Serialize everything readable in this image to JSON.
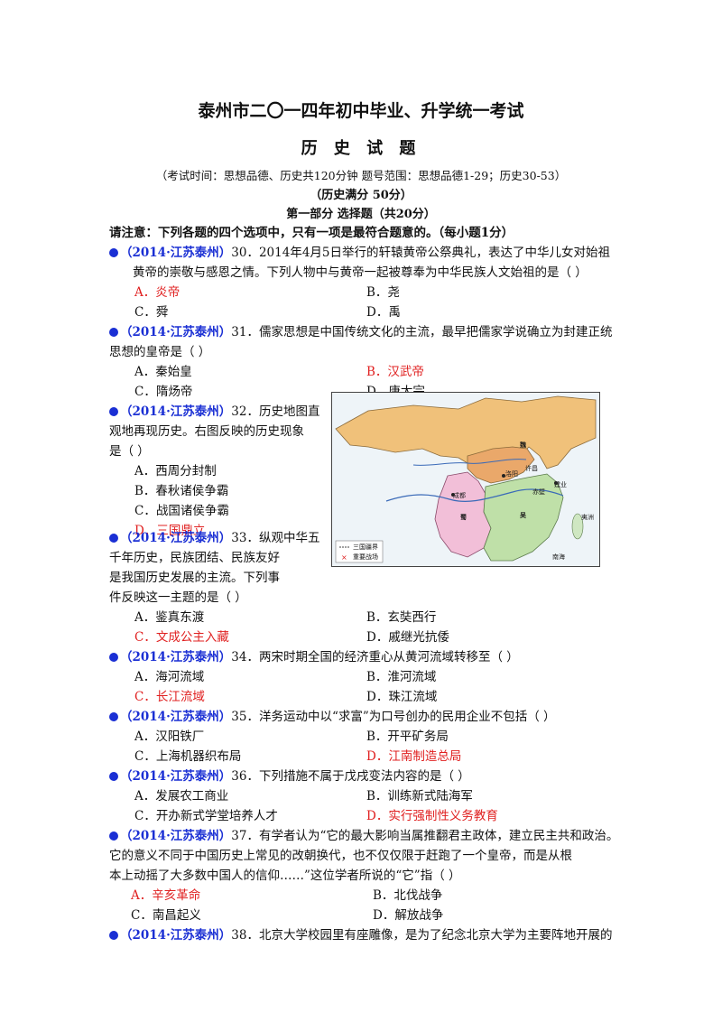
{
  "header": {
    "title": "泰州市二〇一四年初中毕业、升学统一考试",
    "subtitle": "历 史 试 题",
    "exam_info": "（考试时间：思想品德、历史共120分钟    题号范围：思想品德1-29；历史30-53）",
    "score": "（历史满分    50分）",
    "part": "第一部分    选择题（共20分）",
    "notice": "请注意：下列各题的四个选项中，只有一项是最符合题意的。（每小题1分）"
  },
  "colors": {
    "source": "#1a2fd4",
    "answer": "#e02020"
  },
  "questions": [
    {
      "source": "（2014·江苏泰州）",
      "lines": [
        "30．2014年4月5日举行的轩辕黄帝公祭典礼，表达了中华儿女对始祖",
        "黄帝的崇敬与感恩之情。下列人物中与黄帝一起被尊奉为中华民族人文始祖的是（      ）"
      ],
      "options": [
        "A．炎帝",
        "B．尧",
        "C．舜",
        "D．禹"
      ],
      "answer": "A"
    },
    {
      "source": "（2014·江苏泰州）",
      "lines": [
        "31．儒家思想是中国传统文化的主流，最早把儒家学说确立为封建正统",
        "思想的皇帝是（      ）"
      ],
      "options": [
        "A．秦始皇",
        "B．汉武帝",
        "C．隋炀帝",
        "D．唐太宗"
      ],
      "answer": "B"
    },
    {
      "source": "（2014·江苏泰州）",
      "lines": [
        "32．历史地图直",
        "观地再现历史。右图反映的历史现象",
        "是（    ）"
      ],
      "options": [
        "A．西周分封制",
        "B．春秋诸侯争霸",
        "C．战国诸侯争霸",
        "D．三国鼎立"
      ],
      "answer": "D"
    },
    {
      "source": "（2014·江苏泰州）",
      "lines": [
        "33．纵观中华五",
        "千年历史，民族团结、民族友好",
        "是我国历史发展的主流。下列事",
        "件反映这一主题的是（      ）"
      ],
      "options": [
        "A．鉴真东渡",
        "B．玄奘西行",
        "C．文成公主入藏",
        "D．戚继光抗倭"
      ],
      "answer": "C"
    },
    {
      "source": "（2014·江苏泰州）",
      "lines": [
        "34．两宋时期全国的经济重心从黄河流域转移至（      ）"
      ],
      "options": [
        "A．海河流域",
        "B．淮河流域",
        "C．长江流域",
        "D．珠江流域"
      ],
      "answer": "C"
    },
    {
      "source": "（2014·江苏泰州）",
      "lines": [
        "35．洋务运动中以“求富”为口号创办的民用企业不包括（      ）"
      ],
      "options": [
        "A．汉阳铁厂",
        "B．开平矿务局",
        "C．上海机器织布局",
        "D．江南制造总局"
      ],
      "answer": "D"
    },
    {
      "source": "（2014·江苏泰州）",
      "lines": [
        "36．下列措施不属于戊戌变法内容的是（      ）"
      ],
      "options": [
        "A．发展农工商业",
        "B．训练新式陆海军",
        "C．开办新式学堂培养人才",
        "D．实行强制性义务教育"
      ],
      "answer": "D"
    },
    {
      "source": "（2014·江苏泰州）",
      "lines": [
        "37．有学者认为“它的最大影响当属推翻君主政体，建立民主共和政治。",
        "它的意义不同于中国历史上常见的改朝换代，也不仅仅限于赶跑了一个皇帝，而是从根",
        "本上动摇了大多数中国人的信仰……”这位学者所说的“它”指（      ）"
      ],
      "options": [
        "A．辛亥革命",
        "B．北伐战争",
        "C．南昌起义",
        "D．解放战争"
      ],
      "answer": "A"
    },
    {
      "source": "（2014·江苏泰州）",
      "lines": [
        "38．北京大学校园里有座雕像，是为了纪念北京大学为主要阵地开展的"
      ],
      "options": [],
      "answer": ""
    }
  ],
  "map": {
    "labels": [
      "魏",
      "蜀",
      "吴",
      "洛阳",
      "许昌",
      "赤壁",
      "建业",
      "成都",
      "夷洲",
      "南海"
    ],
    "legend": [
      "三国疆界",
      "重要战场"
    ]
  }
}
